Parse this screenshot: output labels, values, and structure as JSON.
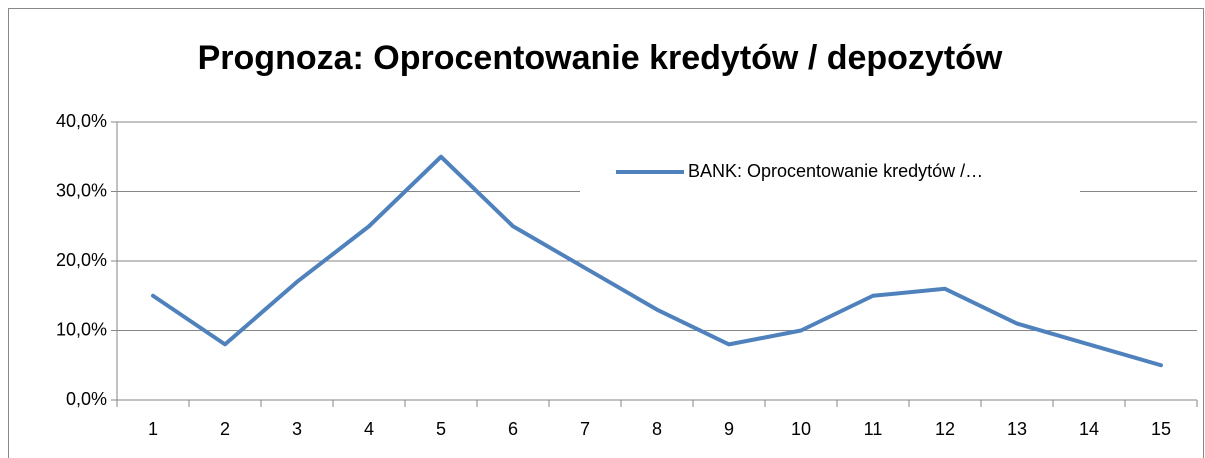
{
  "chart_data": {
    "type": "line",
    "title": "Prognoza: Oprocentowanie kredytów / depozytów",
    "categories": [
      "1",
      "2",
      "3",
      "4",
      "5",
      "6",
      "7",
      "8",
      "9",
      "10",
      "11",
      "12",
      "13",
      "14",
      "15"
    ],
    "series": [
      {
        "name": "BANK: Oprocentowanie kredytów /…",
        "color": "#4f81bd",
        "values": [
          15,
          8,
          17,
          25,
          35,
          25,
          19,
          13,
          8,
          10,
          15,
          16,
          11,
          8,
          5
        ]
      }
    ],
    "ylim": [
      0,
      40
    ],
    "yticks": [
      {
        "value": 0,
        "label": "0,0%"
      },
      {
        "value": 10,
        "label": "10,0%"
      },
      {
        "value": 20,
        "label": "20,0%"
      },
      {
        "value": 30,
        "label": "30,0%"
      },
      {
        "value": 40,
        "label": "40,0%"
      }
    ],
    "grid": true,
    "legend": "top-right"
  }
}
